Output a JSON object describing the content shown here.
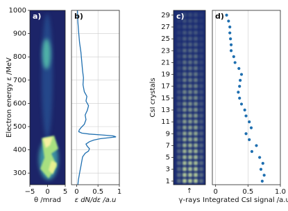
{
  "chart_data": [
    {
      "type": "image",
      "label": "a)",
      "xlabel": "θ /mrad",
      "ylabel": "Electron energy ε /MeV",
      "xlim": [
        -5,
        5
      ],
      "xticks": [
        {
          "value": -5,
          "label": "−5"
        },
        0,
        5
      ],
      "ylim": [
        250,
        1000
      ],
      "yticks": [
        300,
        400,
        500,
        600,
        700,
        800,
        900,
        1000
      ]
    },
    {
      "type": "line",
      "label": "b)",
      "xlabel": "ε dN/dε /a.u",
      "color": "#1f6fb0",
      "xlim": [
        -0.12,
        1.0
      ],
      "xticks": [
        0,
        0.5,
        1
      ],
      "ylim": [
        250,
        1000
      ],
      "yticks": [
        300,
        400,
        500,
        600,
        700,
        800,
        900,
        1000
      ],
      "grid": true,
      "energy": [
        250,
        270,
        290,
        310,
        330,
        350,
        370,
        385,
        395,
        405,
        415,
        425,
        435,
        442,
        448,
        452,
        456,
        460,
        464,
        468,
        472,
        478,
        485,
        495,
        510,
        530,
        550,
        570,
        590,
        610,
        630,
        650,
        680,
        710,
        740,
        780,
        820,
        860,
        900,
        950,
        1000
      ],
      "values": [
        0.03,
        0.04,
        0.06,
        0.08,
        0.1,
        0.12,
        0.14,
        0.2,
        0.28,
        0.3,
        0.25,
        0.22,
        0.3,
        0.4,
        0.55,
        0.75,
        0.92,
        0.85,
        0.6,
        0.3,
        0.12,
        0.05,
        0.06,
        0.1,
        0.18,
        0.22,
        0.2,
        0.25,
        0.28,
        0.22,
        0.24,
        0.18,
        0.15,
        0.16,
        0.14,
        0.12,
        0.1,
        0.07,
        0.05,
        0.03,
        0.02
      ]
    },
    {
      "type": "image",
      "label": "c)",
      "xlabel": "γ-rays",
      "arrow": "↑",
      "ylabel": "CsI crystals",
      "ylim": [
        0.4,
        29.8
      ],
      "yticks": [
        1,
        3,
        5,
        7,
        9,
        11,
        13,
        15,
        17,
        19,
        21,
        23,
        25,
        27,
        29
      ]
    },
    {
      "type": "scatter",
      "label": "d)",
      "xlabel": "Integrated CsI signal /a.u",
      "color": "#1f6fb0",
      "xlim": [
        -0.05,
        1.0
      ],
      "xticks": [
        0,
        0.5,
        {
          "value": 1,
          "label": "1.0"
        }
      ],
      "ylim": [
        0.4,
        29.8
      ],
      "grid": true,
      "crystals": [
        1,
        2,
        3,
        4,
        5,
        6,
        7,
        8,
        9,
        10,
        11,
        12,
        13,
        14,
        15,
        16,
        17,
        18,
        19,
        20,
        21,
        22,
        23,
        24,
        25,
        26,
        27,
        28,
        29
      ],
      "values": [
        0.72,
        0.75,
        0.7,
        0.73,
        0.68,
        0.56,
        0.63,
        0.52,
        0.47,
        0.55,
        0.52,
        0.47,
        0.45,
        0.4,
        0.37,
        0.35,
        0.37,
        0.38,
        0.4,
        0.36,
        0.3,
        0.28,
        0.24,
        0.24,
        0.23,
        0.22,
        0.22,
        0.2,
        0.17
      ]
    }
  ]
}
